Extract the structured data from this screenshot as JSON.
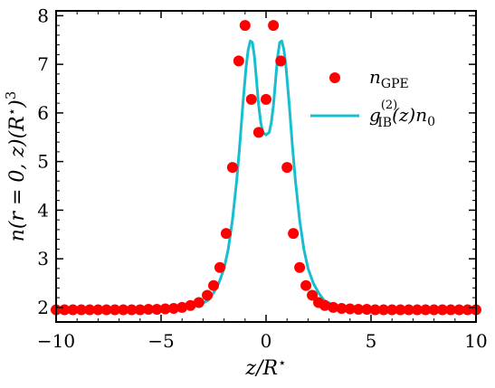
{
  "chart_data": {
    "type": "line",
    "xlabel": "z/R*",
    "ylabel": "n(r = 0, z)(R*)^3",
    "xlim": [
      -10,
      10
    ],
    "ylim": [
      1.7,
      8.1
    ],
    "xticks": [
      "−10",
      "−5",
      "0",
      "5",
      "10"
    ],
    "xtick_values": [
      -10,
      -5,
      0,
      5,
      10
    ],
    "yticks": [
      "2",
      "3",
      "4",
      "5",
      "6",
      "7",
      "8"
    ],
    "ytick_values": [
      2,
      3,
      4,
      5,
      6,
      7,
      8
    ],
    "grid": false,
    "legend_position": "right",
    "colors": {
      "points": "#ff0000",
      "line": "#17becf"
    },
    "series": [
      {
        "name": "n_GPE",
        "legend_main": "n",
        "legend_sub": "GPE",
        "kind": "scatter",
        "x": [
          -10,
          -9.6,
          -9.2,
          -8.8,
          -8.4,
          -8.0,
          -7.6,
          -7.2,
          -6.8,
          -6.4,
          -6.0,
          -5.6,
          -5.2,
          -4.8,
          -4.4,
          -4.0,
          -3.6,
          -3.2,
          -2.8,
          -2.5,
          -2.2,
          -1.9,
          -1.6,
          -1.3,
          -1.0,
          -0.7,
          -0.35,
          0.0,
          0.35,
          0.7,
          1.0,
          1.3,
          1.6,
          1.9,
          2.2,
          2.5,
          2.8,
          3.2,
          3.6,
          4.0,
          4.4,
          4.8,
          5.2,
          5.6,
          6.0,
          6.4,
          6.8,
          7.2,
          7.6,
          8.0,
          8.4,
          8.8,
          9.2,
          9.6,
          10
        ],
        "y": [
          1.95,
          1.95,
          1.95,
          1.95,
          1.95,
          1.95,
          1.95,
          1.95,
          1.95,
          1.95,
          1.95,
          1.96,
          1.96,
          1.97,
          1.98,
          2.0,
          2.04,
          2.1,
          2.25,
          2.45,
          2.82,
          3.52,
          4.88,
          7.07,
          7.8,
          6.28,
          5.6,
          6.28,
          7.8,
          7.07,
          4.88,
          3.52,
          2.82,
          2.45,
          2.25,
          2.1,
          2.04,
          2.0,
          1.98,
          1.97,
          1.96,
          1.96,
          1.95,
          1.95,
          1.95,
          1.95,
          1.95,
          1.95,
          1.95,
          1.95,
          1.95,
          1.95,
          1.95,
          1.95,
          1.95
        ]
      },
      {
        "name": "g_IB^(2)(z) n_0",
        "legend_main": "g",
        "legend_sub": "IB",
        "legend_sup": "(2)",
        "legend_rest": "(z)n",
        "legend_rest_sub": "0",
        "kind": "line",
        "x": [
          -10,
          -8,
          -6,
          -5,
          -4.5,
          -4,
          -3.5,
          -3,
          -2.75,
          -2.5,
          -2.25,
          -2,
          -1.8,
          -1.6,
          -1.4,
          -1.25,
          -1.1,
          -0.95,
          -0.85,
          -0.75,
          -0.65,
          -0.55,
          -0.45,
          -0.35,
          -0.25,
          -0.15,
          0,
          0.15,
          0.25,
          0.35,
          0.45,
          0.55,
          0.65,
          0.75,
          0.85,
          0.95,
          1.1,
          1.25,
          1.4,
          1.6,
          1.8,
          2,
          2.25,
          2.5,
          2.75,
          3,
          3.5,
          4,
          4.5,
          5,
          6,
          8,
          10
        ],
        "y": [
          1.95,
          1.95,
          1.95,
          1.96,
          1.97,
          1.99,
          2.02,
          2.09,
          2.15,
          2.3,
          2.5,
          2.8,
          3.2,
          3.8,
          4.6,
          5.35,
          6.2,
          6.95,
          7.3,
          7.48,
          7.45,
          7.15,
          6.65,
          6.15,
          5.8,
          5.6,
          5.55,
          5.6,
          5.8,
          6.15,
          6.65,
          7.15,
          7.45,
          7.48,
          7.3,
          6.95,
          6.2,
          5.35,
          4.6,
          3.8,
          3.2,
          2.8,
          2.5,
          2.3,
          2.15,
          2.09,
          2.02,
          1.99,
          1.97,
          1.96,
          1.95,
          1.95,
          1.95
        ]
      }
    ]
  }
}
